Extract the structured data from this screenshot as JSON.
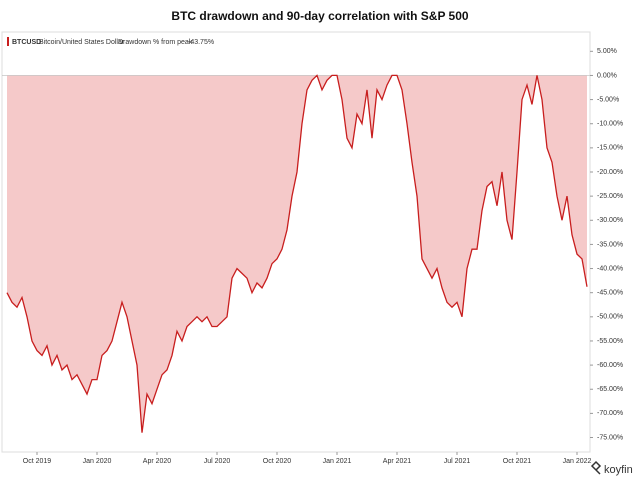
{
  "chart_data": {
    "type": "area",
    "title": "BTC drawdown and 90-day correlation with S&P 500",
    "legend": {
      "symbol": "BTCUSD",
      "name": "Bitcoin/United States Dollar",
      "metric": "Drawdown % from peak",
      "value_label": "-43.75%"
    },
    "brand": "koyfin",
    "categories": [
      null,
      null,
      null,
      null,
      null,
      null,
      "Oct 2019",
      null,
      null,
      null,
      null,
      null,
      null,
      null,
      null,
      null,
      null,
      null,
      "Jan 2020",
      null,
      null,
      null,
      null,
      null,
      null,
      null,
      null,
      null,
      null,
      null,
      "Apr 2020",
      null,
      null,
      null,
      null,
      null,
      null,
      null,
      null,
      null,
      null,
      null,
      "Jul 2020",
      null,
      null,
      null,
      null,
      null,
      null,
      null,
      null,
      null,
      null,
      null,
      "Oct 2020",
      null,
      null,
      null,
      null,
      null,
      null,
      null,
      null,
      null,
      null,
      null,
      "Jan 2021",
      null,
      null,
      null,
      null,
      null,
      null,
      null,
      null,
      null,
      null,
      null,
      "Apr 2021",
      null,
      null,
      null,
      null,
      null,
      null,
      null,
      null,
      null,
      null,
      null,
      "Jul 2021",
      null,
      null,
      null,
      null,
      null,
      null,
      null,
      null,
      null,
      null,
      null,
      "Oct 2021",
      null,
      null,
      null,
      null,
      null,
      null,
      null,
      null,
      null,
      null,
      null,
      "Jan 2022",
      null,
      null
    ],
    "series": [
      {
        "name": "Drawdown % from peak",
        "color": "#c81e1e",
        "fill": "#f5c9c9",
        "values": [
          -45,
          -47,
          -48,
          -46,
          -50,
          -55,
          -57,
          -58,
          -56,
          -60,
          -58,
          -61,
          -60,
          -63,
          -62,
          -64,
          -66,
          -63,
          -63,
          -58,
          -57,
          -55,
          -51,
          -47,
          -50,
          -55,
          -60,
          -74,
          -66,
          -68,
          -65,
          -62,
          -61,
          -58,
          -53,
          -55,
          -52,
          -51,
          -50,
          -51,
          -50,
          -52,
          -52,
          -51,
          -50,
          -42,
          -40,
          -41,
          -42,
          -45,
          -43,
          -44,
          -42,
          -39,
          -38,
          -36,
          -32,
          -25,
          -20,
          -10,
          -3,
          -1,
          0,
          -3,
          -1,
          0,
          0,
          -5,
          -13,
          -15,
          -8,
          -10,
          -3,
          -13,
          -3,
          -5,
          -2,
          0,
          0,
          -3,
          -10,
          -18,
          -25,
          -38,
          -40,
          -42,
          -40,
          -44,
          -47,
          -48,
          -47,
          -50,
          -40,
          -36,
          -36,
          -28,
          -23,
          -22,
          -27,
          -20,
          -30,
          -34,
          -20,
          -5,
          -2,
          -6,
          0,
          -5,
          -15,
          -18,
          -25,
          -30,
          -25,
          -33,
          -37,
          -38,
          -43.75
        ]
      }
    ],
    "ylim": [
      -78,
      9
    ],
    "yticks": [
      {
        "value": 5,
        "label": "5.00%"
      },
      {
        "value": 0,
        "label": "0.00%"
      },
      {
        "value": -5,
        "label": "-5.00%"
      },
      {
        "value": -10,
        "label": "-10.00%"
      },
      {
        "value": -15,
        "label": "-15.00%"
      },
      {
        "value": -20,
        "label": "-20.00%"
      },
      {
        "value": -25,
        "label": "-25.00%"
      },
      {
        "value": -30,
        "label": "-30.00%"
      },
      {
        "value": -35,
        "label": "-35.00%"
      },
      {
        "value": -40,
        "label": "-40.00%"
      },
      {
        "value": -45,
        "label": "-45.00%"
      },
      {
        "value": -50,
        "label": "-50.00%"
      },
      {
        "value": -55,
        "label": "-55.00%"
      },
      {
        "value": -60,
        "label": "-60.00%"
      },
      {
        "value": -65,
        "label": "-65.00%"
      },
      {
        "value": -70,
        "label": "-70.00%"
      },
      {
        "value": -75,
        "label": "-75.00%"
      }
    ],
    "yaxis_side": "right"
  }
}
